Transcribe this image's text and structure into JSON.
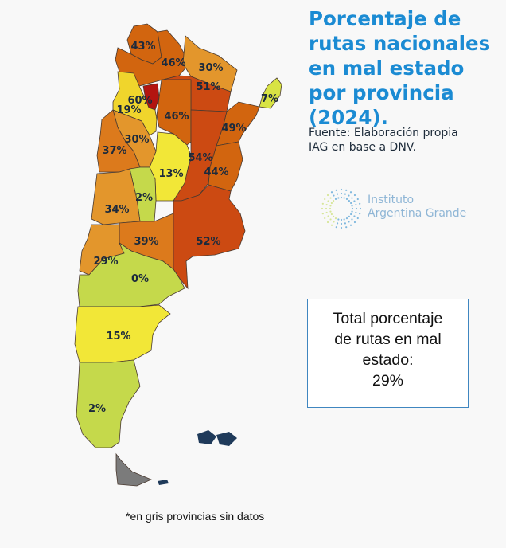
{
  "title": "Porcentaje de rutas nacionales en mal estado por provincia (2024).",
  "source": "Fuente: Elaboración propia IAG en base a DNV.",
  "logo": {
    "line1": "Instituto",
    "line2": "Argentina Grande"
  },
  "total": {
    "line1": "Total porcentaje",
    "line2": "de rutas en mal",
    "line3": "estado:",
    "value": "29%"
  },
  "note": "*en gris provincias sin datos",
  "colors": {
    "title": "#1b8bd3",
    "no_data": "#7b7b7b",
    "malvinas": "#1f3a5a"
  },
  "provinces": [
    {
      "id": "jujuy",
      "label": "43%",
      "value": 43
    },
    {
      "id": "salta",
      "label": "46%",
      "value": 46
    },
    {
      "id": "formosa",
      "label": "30%",
      "value": 30
    },
    {
      "id": "chaco",
      "label": "51%",
      "value": 51
    },
    {
      "id": "tucuman",
      "label": "60%",
      "value": 60
    },
    {
      "id": "santiago-del-estero",
      "label": "46%",
      "value": 46
    },
    {
      "id": "catamarca",
      "label": "19%",
      "value": 19
    },
    {
      "id": "misiones",
      "label": "7%",
      "value": 7
    },
    {
      "id": "corrientes",
      "label": "49%",
      "value": 49
    },
    {
      "id": "santa-fe",
      "label": "54%",
      "value": 54
    },
    {
      "id": "entre-rios",
      "label": "44%",
      "value": 44
    },
    {
      "id": "cordoba",
      "label": "13%",
      "value": 13
    },
    {
      "id": "la-rioja",
      "label": "30%",
      "value": 30
    },
    {
      "id": "san-juan",
      "label": "37%",
      "value": 37
    },
    {
      "id": "san-luis",
      "label": "2%",
      "value": 2
    },
    {
      "id": "mendoza",
      "label": "34%",
      "value": 34
    },
    {
      "id": "la-pampa",
      "label": "39%",
      "value": 39
    },
    {
      "id": "buenos-aires",
      "label": "52%",
      "value": 52
    },
    {
      "id": "neuquen",
      "label": "29%",
      "value": 29
    },
    {
      "id": "rio-negro",
      "label": "0%",
      "value": 0
    },
    {
      "id": "chubut",
      "label": "15%",
      "value": 15
    },
    {
      "id": "santa-cruz",
      "label": "2%",
      "value": 2
    },
    {
      "id": "tierra-del-fuego",
      "label": "",
      "value": null
    }
  ]
}
